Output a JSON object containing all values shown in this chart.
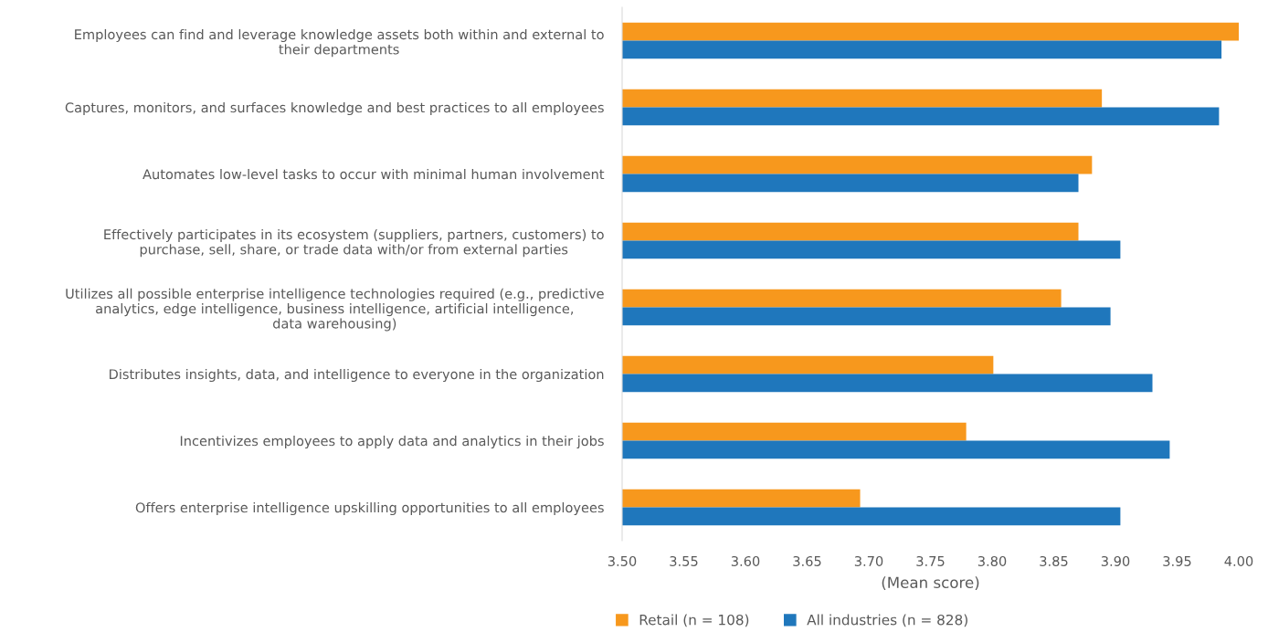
{
  "chart_data": {
    "type": "bar",
    "orientation": "horizontal",
    "categories": [
      "Employees can find and leverage knowledge assets both within and external to\ntheir departments",
      "Captures, monitors, and surfaces knowledge and best practices to all employees",
      "Automates low-level tasks to occur with minimal human involvement",
      "Effectively participates in its ecosystem (suppliers, partners, customers) to\npurchase, sell, share, or trade data with/or from external parties",
      "Utilizes all possible enterprise intelligence technologies required (e.g., predictive\nanalytics, edge intelligence, business intelligence, artificial intelligence,\ndata warehousing)",
      "Distributes insights, data, and intelligence to everyone in the organization",
      "Incentivizes employees to apply data and analytics in their jobs",
      "Offers enterprise intelligence upskilling opportunities to all employees"
    ],
    "series": [
      {
        "name": "Retail (n = 108)",
        "color": "#f7981d",
        "values": [
          4.0,
          3.889,
          3.881,
          3.87,
          3.856,
          3.801,
          3.779,
          3.693
        ]
      },
      {
        "name": "All industries (n = 828)",
        "color": "#1f77bc",
        "values": [
          3.986,
          3.984,
          3.87,
          3.904,
          3.896,
          3.93,
          3.944,
          3.904
        ]
      }
    ],
    "xlabel": "(Mean score)",
    "xlim": [
      3.5,
      4.0
    ],
    "xticks": [
      {
        "value": 3.5,
        "label": "3.50"
      },
      {
        "value": 3.55,
        "label": "3.55"
      },
      {
        "value": 3.6,
        "label": "3.60"
      },
      {
        "value": 3.65,
        "label": "3.65"
      },
      {
        "value": 3.7,
        "label": "3.70"
      },
      {
        "value": 3.75,
        "label": "3.75"
      },
      {
        "value": 3.8,
        "label": "3.80"
      },
      {
        "value": 3.85,
        "label": "3.85"
      },
      {
        "value": 3.9,
        "label": "3.90"
      },
      {
        "value": 3.95,
        "label": "3.95"
      },
      {
        "value": 4.0,
        "label": "4.00"
      }
    ],
    "grid": false,
    "legend": "bottom"
  }
}
